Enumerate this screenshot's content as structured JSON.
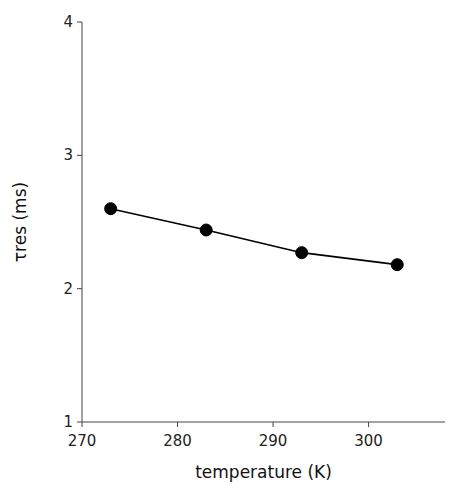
{
  "chart_data": {
    "type": "line",
    "x": [
      273,
      283,
      293,
      303
    ],
    "values": [
      2.6,
      2.44,
      2.27,
      2.18
    ],
    "xlabel": "temperature (K)",
    "ylabel": "τres (ms)",
    "xlim": [
      270,
      308
    ],
    "ylim": [
      1,
      4
    ],
    "xticks": [
      270,
      280,
      290,
      300
    ],
    "yticks": [
      1,
      2,
      3,
      4
    ],
    "color": "black",
    "marker": "circle",
    "line_style": "solid",
    "grid": false
  }
}
